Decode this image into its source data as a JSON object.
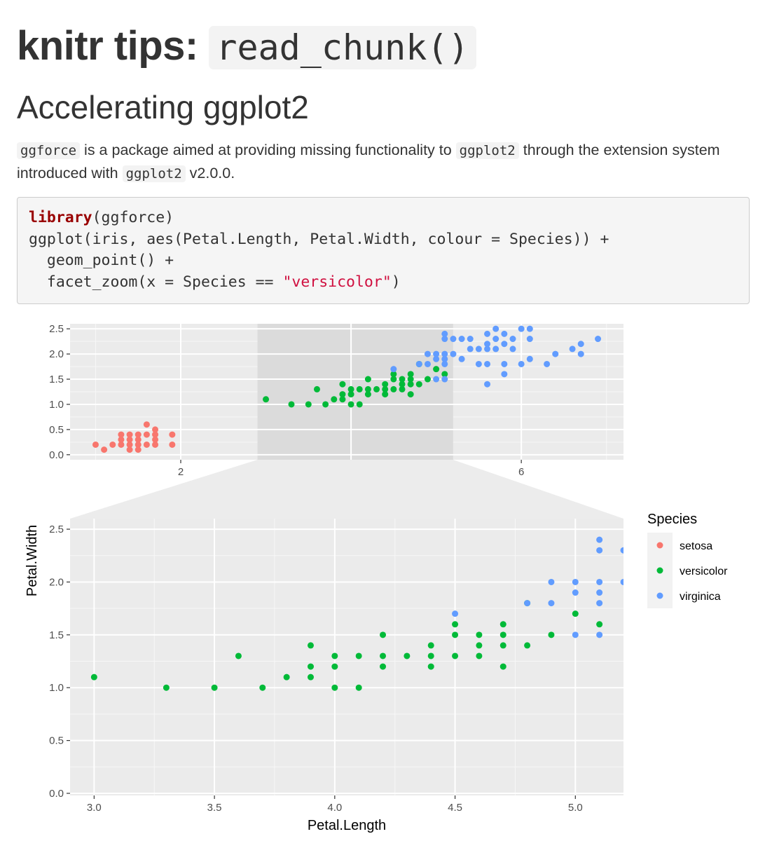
{
  "page": {
    "title_text": "knitr tips: ",
    "title_code": "read_chunk()",
    "subtitle": "Accelerating ggplot2",
    "para": {
      "code1": "ggforce",
      "text1": " is a package aimed at providing missing functionality to ",
      "code2": "ggplot2",
      "text2": " through the extension system introduced with ",
      "code3": "ggplot2",
      "text3": " v2.0.0."
    },
    "code": {
      "l1_fn": "library",
      "l1_rest": "(ggforce)",
      "l2": "ggplot(iris, aes(Petal.Length, Petal.Width, colour = Species)) +",
      "l3": "  geom_point() +",
      "l4_pre": "  facet_zoom(x = Species == ",
      "l4_str": "\"versicolor\"",
      "l4_post": ")"
    }
  },
  "colors": {
    "setosa": "#F8766D",
    "versicolor": "#00BA38",
    "virginica": "#619CFF",
    "panel_bg": "#EBEBEB",
    "zoom_band": "#DBDBDB",
    "grid_major": "#FFFFFF",
    "axis_text": "#4D4D4D"
  },
  "chart_data": {
    "type": "scatter",
    "facet": "zoom",
    "xlabel": "Petal.Length",
    "ylabel": "Petal.Width",
    "legend": {
      "title": "Species",
      "placement": "right"
    },
    "overview": {
      "xlim": [
        0.7,
        7.2
      ],
      "ylim": [
        -0.1,
        2.6
      ],
      "xticks": [
        2,
        4,
        6
      ],
      "yticks": [
        0.0,
        0.5,
        1.0,
        1.5,
        2.0,
        2.5
      ],
      "xtick_labels": [
        "2",
        "4",
        "6"
      ],
      "ytick_labels": [
        "0.0",
        "0.5",
        "1.0",
        "1.5",
        "2.0",
        "2.5"
      ],
      "zoom_range": [
        3.0,
        5.1
      ],
      "grid": true
    },
    "zoom": {
      "xlim": [
        2.9,
        5.2
      ],
      "ylim": [
        -0.02,
        2.6
      ],
      "xticks": [
        3.0,
        3.5,
        4.0,
        4.5,
        5.0
      ],
      "yticks": [
        0.0,
        0.5,
        1.0,
        1.5,
        2.0,
        2.5
      ],
      "xtick_labels": [
        "3.0",
        "3.5",
        "4.0",
        "4.5",
        "5.0"
      ],
      "ytick_labels": [
        "0.0",
        "0.5",
        "1.0",
        "1.5",
        "2.0",
        "2.5"
      ],
      "grid": true
    },
    "series": [
      {
        "name": "setosa",
        "points": [
          [
            1.0,
            0.2
          ],
          [
            1.1,
            0.1
          ],
          [
            1.2,
            0.2
          ],
          [
            1.3,
            0.2
          ],
          [
            1.3,
            0.3
          ],
          [
            1.3,
            0.4
          ],
          [
            1.4,
            0.1
          ],
          [
            1.4,
            0.2
          ],
          [
            1.4,
            0.3
          ],
          [
            1.4,
            0.4
          ],
          [
            1.5,
            0.1
          ],
          [
            1.5,
            0.2
          ],
          [
            1.5,
            0.3
          ],
          [
            1.5,
            0.4
          ],
          [
            1.6,
            0.2
          ],
          [
            1.6,
            0.4
          ],
          [
            1.6,
            0.6
          ],
          [
            1.7,
            0.2
          ],
          [
            1.7,
            0.3
          ],
          [
            1.7,
            0.4
          ],
          [
            1.7,
            0.5
          ],
          [
            1.9,
            0.2
          ],
          [
            1.9,
            0.4
          ]
        ]
      },
      {
        "name": "versicolor",
        "points": [
          [
            3.0,
            1.1
          ],
          [
            3.3,
            1.0
          ],
          [
            3.5,
            1.0
          ],
          [
            3.6,
            1.3
          ],
          [
            3.7,
            1.0
          ],
          [
            3.8,
            1.1
          ],
          [
            3.9,
            1.1
          ],
          [
            3.9,
            1.2
          ],
          [
            3.9,
            1.4
          ],
          [
            4.0,
            1.0
          ],
          [
            4.0,
            1.2
          ],
          [
            4.0,
            1.3
          ],
          [
            4.1,
            1.0
          ],
          [
            4.1,
            1.3
          ],
          [
            4.2,
            1.2
          ],
          [
            4.2,
            1.3
          ],
          [
            4.2,
            1.5
          ],
          [
            4.3,
            1.3
          ],
          [
            4.4,
            1.2
          ],
          [
            4.4,
            1.3
          ],
          [
            4.4,
            1.4
          ],
          [
            4.5,
            1.3
          ],
          [
            4.5,
            1.5
          ],
          [
            4.5,
            1.6
          ],
          [
            4.6,
            1.3
          ],
          [
            4.6,
            1.4
          ],
          [
            4.6,
            1.5
          ],
          [
            4.7,
            1.2
          ],
          [
            4.7,
            1.4
          ],
          [
            4.7,
            1.5
          ],
          [
            4.7,
            1.6
          ],
          [
            4.8,
            1.4
          ],
          [
            4.8,
            1.8
          ],
          [
            4.9,
            1.5
          ],
          [
            5.0,
            1.7
          ],
          [
            5.1,
            1.6
          ]
        ]
      },
      {
        "name": "virginica",
        "points": [
          [
            4.5,
            1.7
          ],
          [
            4.8,
            1.8
          ],
          [
            4.9,
            1.8
          ],
          [
            4.9,
            2.0
          ],
          [
            5.0,
            1.5
          ],
          [
            5.0,
            1.9
          ],
          [
            5.0,
            2.0
          ],
          [
            5.1,
            1.5
          ],
          [
            5.1,
            1.8
          ],
          [
            5.1,
            1.9
          ],
          [
            5.1,
            2.0
          ],
          [
            5.1,
            2.3
          ],
          [
            5.1,
            2.4
          ],
          [
            5.2,
            2.0
          ],
          [
            5.2,
            2.3
          ],
          [
            5.3,
            1.9
          ],
          [
            5.3,
            2.3
          ],
          [
            5.4,
            2.1
          ],
          [
            5.4,
            2.3
          ],
          [
            5.5,
            1.8
          ],
          [
            5.5,
            2.1
          ],
          [
            5.6,
            1.4
          ],
          [
            5.6,
            1.8
          ],
          [
            5.6,
            2.1
          ],
          [
            5.6,
            2.2
          ],
          [
            5.6,
            2.4
          ],
          [
            5.7,
            2.1
          ],
          [
            5.7,
            2.3
          ],
          [
            5.7,
            2.5
          ],
          [
            5.8,
            1.6
          ],
          [
            5.8,
            1.8
          ],
          [
            5.8,
            2.2
          ],
          [
            5.8,
            2.4
          ],
          [
            5.9,
            2.1
          ],
          [
            5.9,
            2.3
          ],
          [
            6.0,
            1.8
          ],
          [
            6.0,
            2.5
          ],
          [
            6.1,
            1.9
          ],
          [
            6.1,
            2.3
          ],
          [
            6.1,
            2.5
          ],
          [
            6.3,
            1.8
          ],
          [
            6.4,
            2.0
          ],
          [
            6.6,
            2.1
          ],
          [
            6.7,
            2.0
          ],
          [
            6.7,
            2.2
          ],
          [
            6.9,
            2.3
          ]
        ]
      }
    ]
  }
}
